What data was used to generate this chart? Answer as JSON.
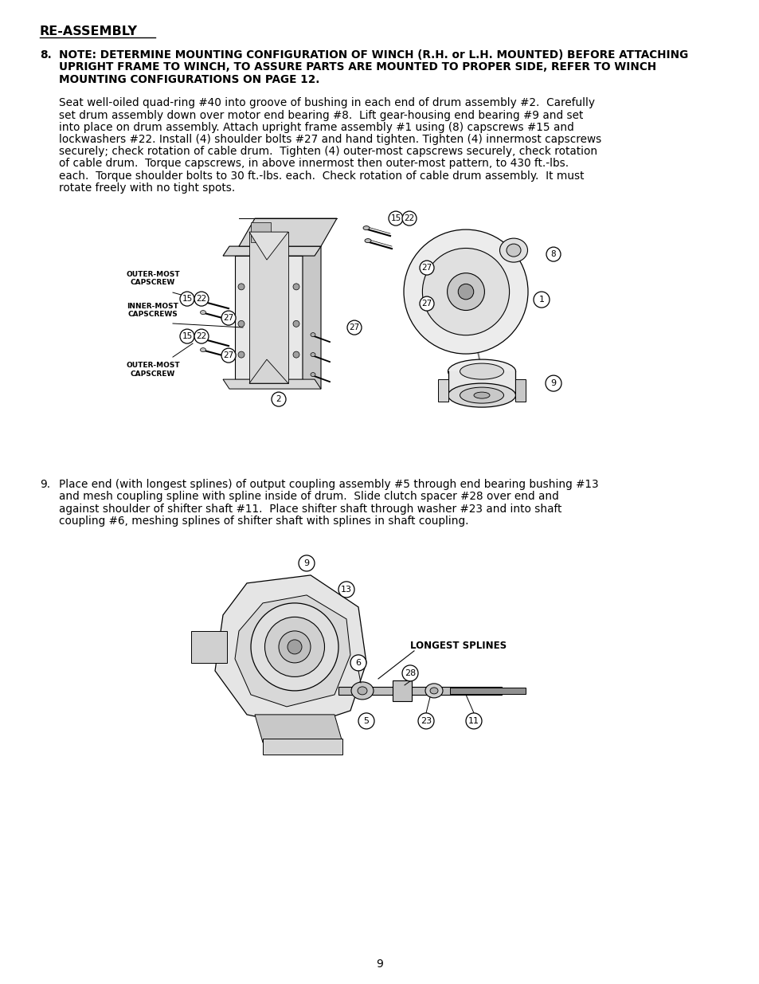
{
  "page_background": "#ffffff",
  "page_number": "9",
  "title": "RE-ASSEMBLY",
  "title_fontsize": 11.5,
  "section8_bold_text_line1": "NOTE: DETERMINE MOUNTING CONFIGURATION OF WINCH (R.H. or L.H. MOUNTED) BEFORE ATTACHING",
  "section8_bold_text_line2": "UPRIGHT FRAME TO WINCH, TO ASSURE PARTS ARE MOUNTED TO PROPER SIDE, REFER TO WINCH",
  "section8_bold_text_line3": "MOUNTING CONFIGURATIONS ON PAGE 12.",
  "section8_bold_fontsize": 9.8,
  "section8_body_lines": [
    "Seat well-oiled quad-ring #40 into groove of bushing in each end of drum assembly #2.  Carefully",
    "set drum assembly down over motor end bearing #8.  Lift gear-housing end bearing #9 and set",
    "into place on drum assembly. Attach upright frame assembly #1 using (8) capscrews #15 and",
    "lockwashers #22. Install (4) shoulder bolts #27 and hand tighten. Tighten (4) innermost capscrews",
    "securely; check rotation of cable drum.  Tighten (4) outer-most capscrews securely, check rotation",
    "of cable drum.  Torque capscrews, in above innermost then outer-most pattern, to 430 ft.-lbs.",
    "each.  Torque shoulder bolts to 30 ft.-lbs. each.  Check rotation of cable drum assembly.  It must",
    "rotate freely with no tight spots."
  ],
  "section8_body_fontsize": 9.8,
  "section9_body_lines": [
    "Place end (with longest splines) of output coupling assembly #5 through end bearing bushing #13",
    "and mesh coupling spline with spline inside of drum.  Slide clutch spacer #28 over end and",
    "against shoulder of shifter shaft #11.  Place shifter shaft through washer #23 and into shaft",
    "coupling #6, meshing splines of shifter shaft with splines in shaft coupling."
  ],
  "section9_body_fontsize": 9.8,
  "text_color": "#000000",
  "label_fontsize": 7.0,
  "annot_fontsize": 6.5
}
